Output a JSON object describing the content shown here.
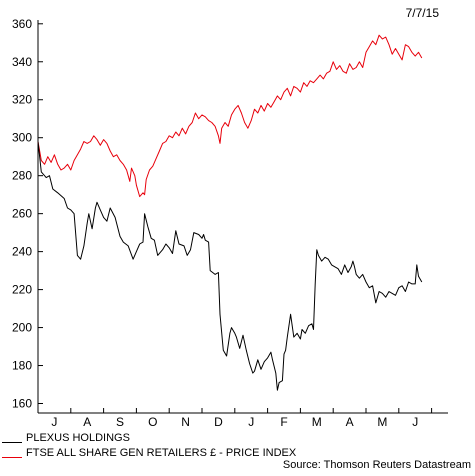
{
  "date_stamp": "7/7/15",
  "source": "Source: Thomson Reuters Datastream",
  "chart_data": {
    "type": "line",
    "ylim": [
      155,
      362
    ],
    "yticks": [
      160,
      180,
      200,
      220,
      240,
      260,
      280,
      300,
      320,
      340,
      360
    ],
    "xlim": [
      0,
      12.5
    ],
    "month_ticks": [
      "J",
      "A",
      "S",
      "O",
      "N",
      "D",
      "J",
      "F",
      "M",
      "A",
      "M",
      "J"
    ],
    "grid": false,
    "legend_position": "bottom-left",
    "series": [
      {
        "name": "PLEXUS HOLDINGS",
        "color": "#000000",
        "points": [
          [
            0.0,
            298
          ],
          [
            0.1,
            282
          ],
          [
            0.25,
            279
          ],
          [
            0.35,
            280
          ],
          [
            0.45,
            273
          ],
          [
            0.6,
            271
          ],
          [
            0.8,
            268
          ],
          [
            0.9,
            263
          ],
          [
            1.0,
            262
          ],
          [
            1.1,
            260
          ],
          [
            1.2,
            238
          ],
          [
            1.3,
            236
          ],
          [
            1.4,
            243
          ],
          [
            1.5,
            255
          ],
          [
            1.55,
            260
          ],
          [
            1.65,
            252
          ],
          [
            1.75,
            263
          ],
          [
            1.8,
            266
          ],
          [
            1.9,
            262
          ],
          [
            2.0,
            258
          ],
          [
            2.1,
            256
          ],
          [
            2.2,
            263
          ],
          [
            2.35,
            258
          ],
          [
            2.5,
            248
          ],
          [
            2.6,
            245
          ],
          [
            2.75,
            243
          ],
          [
            2.9,
            236
          ],
          [
            3.0,
            240
          ],
          [
            3.1,
            244
          ],
          [
            3.2,
            245
          ],
          [
            3.25,
            260
          ],
          [
            3.35,
            253
          ],
          [
            3.45,
            247
          ],
          [
            3.55,
            246
          ],
          [
            3.65,
            238
          ],
          [
            3.8,
            241
          ],
          [
            3.9,
            244
          ],
          [
            4.0,
            242
          ],
          [
            4.1,
            239
          ],
          [
            4.2,
            251
          ],
          [
            4.3,
            244
          ],
          [
            4.45,
            243
          ],
          [
            4.55,
            238
          ],
          [
            4.65,
            241
          ],
          [
            4.75,
            250
          ],
          [
            4.9,
            249
          ],
          [
            5.0,
            247
          ],
          [
            5.05,
            249
          ],
          [
            5.1,
            246
          ],
          [
            5.2,
            245
          ],
          [
            5.25,
            230
          ],
          [
            5.4,
            228
          ],
          [
            5.5,
            229
          ],
          [
            5.55,
            207
          ],
          [
            5.65,
            188
          ],
          [
            5.75,
            185
          ],
          [
            5.85,
            197
          ],
          [
            5.9,
            200
          ],
          [
            6.0,
            197
          ],
          [
            6.05,
            195
          ],
          [
            6.15,
            189
          ],
          [
            6.25,
            196
          ],
          [
            6.35,
            188
          ],
          [
            6.45,
            181
          ],
          [
            6.55,
            176
          ],
          [
            6.6,
            177
          ],
          [
            6.7,
            183
          ],
          [
            6.8,
            178
          ],
          [
            6.9,
            182
          ],
          [
            7.0,
            184
          ],
          [
            7.1,
            187
          ],
          [
            7.15,
            183
          ],
          [
            7.25,
            176
          ],
          [
            7.3,
            167
          ],
          [
            7.35,
            171
          ],
          [
            7.45,
            172
          ],
          [
            7.5,
            186
          ],
          [
            7.55,
            188
          ],
          [
            7.6,
            195
          ],
          [
            7.7,
            207
          ],
          [
            7.75,
            201
          ],
          [
            7.8,
            195
          ],
          [
            7.9,
            197
          ],
          [
            8.0,
            194
          ],
          [
            8.05,
            199
          ],
          [
            8.15,
            197
          ],
          [
            8.25,
            201
          ],
          [
            8.35,
            202
          ],
          [
            8.4,
            199
          ],
          [
            8.45,
            223
          ],
          [
            8.5,
            241
          ],
          [
            8.55,
            238
          ],
          [
            8.65,
            235
          ],
          [
            8.75,
            237
          ],
          [
            8.85,
            236
          ],
          [
            8.95,
            233
          ],
          [
            9.05,
            232
          ],
          [
            9.15,
            231
          ],
          [
            9.25,
            228
          ],
          [
            9.35,
            233
          ],
          [
            9.45,
            229
          ],
          [
            9.55,
            232
          ],
          [
            9.6,
            235
          ],
          [
            9.65,
            232
          ],
          [
            9.7,
            228
          ],
          [
            9.8,
            226
          ],
          [
            9.9,
            228
          ],
          [
            10.0,
            224
          ],
          [
            10.1,
            221
          ],
          [
            10.2,
            222
          ],
          [
            10.3,
            213
          ],
          [
            10.4,
            219
          ],
          [
            10.5,
            218
          ],
          [
            10.6,
            216
          ],
          [
            10.7,
            219
          ],
          [
            10.8,
            218
          ],
          [
            10.9,
            217
          ],
          [
            11.0,
            221
          ],
          [
            11.1,
            222
          ],
          [
            11.2,
            219
          ],
          [
            11.3,
            224
          ],
          [
            11.4,
            223
          ],
          [
            11.5,
            223
          ],
          [
            11.55,
            233
          ],
          [
            11.6,
            227
          ],
          [
            11.7,
            224
          ]
        ]
      },
      {
        "name": "FTSE ALL SHARE GEN RETAILERS £ - PRICE INDEX",
        "color": "#e8000b",
        "points": [
          [
            0.0,
            298
          ],
          [
            0.1,
            288
          ],
          [
            0.2,
            286
          ],
          [
            0.3,
            290
          ],
          [
            0.4,
            287
          ],
          [
            0.5,
            291
          ],
          [
            0.6,
            286
          ],
          [
            0.7,
            283
          ],
          [
            0.8,
            284
          ],
          [
            0.9,
            286
          ],
          [
            1.0,
            283
          ],
          [
            1.1,
            288
          ],
          [
            1.2,
            291
          ],
          [
            1.3,
            294
          ],
          [
            1.4,
            298
          ],
          [
            1.5,
            297
          ],
          [
            1.6,
            298
          ],
          [
            1.7,
            301
          ],
          [
            1.8,
            299
          ],
          [
            1.9,
            296
          ],
          [
            2.0,
            299
          ],
          [
            2.1,
            297
          ],
          [
            2.2,
            293
          ],
          [
            2.3,
            290
          ],
          [
            2.4,
            291
          ],
          [
            2.5,
            288
          ],
          [
            2.6,
            286
          ],
          [
            2.7,
            283
          ],
          [
            2.8,
            277
          ],
          [
            2.85,
            284
          ],
          [
            2.95,
            280
          ],
          [
            3.0,
            275
          ],
          [
            3.1,
            269
          ],
          [
            3.2,
            271
          ],
          [
            3.25,
            270
          ],
          [
            3.3,
            278
          ],
          [
            3.4,
            283
          ],
          [
            3.5,
            285
          ],
          [
            3.6,
            289
          ],
          [
            3.7,
            293
          ],
          [
            3.8,
            297
          ],
          [
            3.9,
            298
          ],
          [
            4.0,
            301
          ],
          [
            4.1,
            300
          ],
          [
            4.2,
            303
          ],
          [
            4.3,
            301
          ],
          [
            4.4,
            305
          ],
          [
            4.5,
            302
          ],
          [
            4.6,
            306
          ],
          [
            4.7,
            308
          ],
          [
            4.8,
            313
          ],
          [
            4.9,
            310
          ],
          [
            5.0,
            312
          ],
          [
            5.1,
            311
          ],
          [
            5.2,
            309
          ],
          [
            5.3,
            308
          ],
          [
            5.4,
            306
          ],
          [
            5.5,
            301
          ],
          [
            5.55,
            297
          ],
          [
            5.6,
            305
          ],
          [
            5.7,
            308
          ],
          [
            5.8,
            306
          ],
          [
            5.9,
            312
          ],
          [
            6.0,
            315
          ],
          [
            6.1,
            317
          ],
          [
            6.2,
            313
          ],
          [
            6.3,
            308
          ],
          [
            6.4,
            305
          ],
          [
            6.5,
            309
          ],
          [
            6.6,
            315
          ],
          [
            6.7,
            313
          ],
          [
            6.8,
            317
          ],
          [
            6.9,
            314
          ],
          [
            7.0,
            318
          ],
          [
            7.1,
            316
          ],
          [
            7.2,
            319
          ],
          [
            7.3,
            322
          ],
          [
            7.4,
            320
          ],
          [
            7.5,
            324
          ],
          [
            7.6,
            326
          ],
          [
            7.7,
            322
          ],
          [
            7.8,
            327
          ],
          [
            7.9,
            326
          ],
          [
            8.0,
            324
          ],
          [
            8.1,
            329
          ],
          [
            8.2,
            327
          ],
          [
            8.3,
            330
          ],
          [
            8.4,
            329
          ],
          [
            8.5,
            331
          ],
          [
            8.6,
            333
          ],
          [
            8.7,
            331
          ],
          [
            8.8,
            334
          ],
          [
            8.9,
            335
          ],
          [
            9.0,
            340
          ],
          [
            9.1,
            336
          ],
          [
            9.2,
            338
          ],
          [
            9.3,
            335
          ],
          [
            9.4,
            334
          ],
          [
            9.5,
            339
          ],
          [
            9.6,
            336
          ],
          [
            9.7,
            337
          ],
          [
            9.8,
            340
          ],
          [
            9.9,
            337
          ],
          [
            10.0,
            345
          ],
          [
            10.1,
            348
          ],
          [
            10.2,
            351
          ],
          [
            10.3,
            349
          ],
          [
            10.4,
            354
          ],
          [
            10.5,
            352
          ],
          [
            10.6,
            353
          ],
          [
            10.7,
            349
          ],
          [
            10.8,
            344
          ],
          [
            10.9,
            347
          ],
          [
            11.0,
            344
          ],
          [
            11.1,
            341
          ],
          [
            11.2,
            349
          ],
          [
            11.3,
            348
          ],
          [
            11.4,
            345
          ],
          [
            11.5,
            343
          ],
          [
            11.6,
            345
          ],
          [
            11.7,
            342
          ]
        ]
      }
    ]
  }
}
